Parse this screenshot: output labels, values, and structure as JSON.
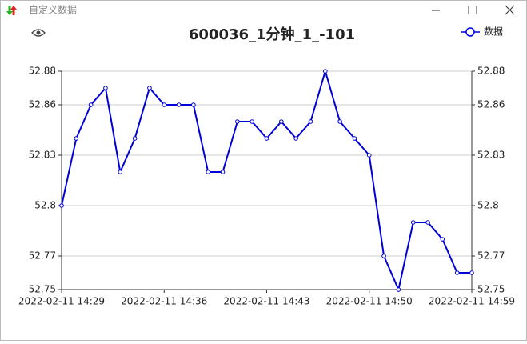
{
  "window": {
    "title": "自定义数据"
  },
  "chart_data": {
    "type": "line",
    "title": "600036_1分钟_1_-101",
    "categories": [
      "2022-02-11 14:29",
      null,
      null,
      null,
      null,
      null,
      null,
      "2022-02-11 14:36",
      null,
      null,
      null,
      null,
      null,
      null,
      "2022-02-11 14:43",
      null,
      null,
      null,
      null,
      null,
      null,
      "2022-02-11 14:50",
      null,
      null,
      null,
      null,
      null,
      null,
      "2022-02-11 14:59"
    ],
    "series": [
      {
        "name": "数据",
        "color": "#0000d8",
        "values": [
          52.8,
          52.84,
          52.86,
          52.87,
          52.82,
          52.84,
          52.87,
          52.86,
          52.86,
          52.86,
          52.82,
          52.82,
          52.85,
          52.85,
          52.84,
          52.85,
          52.84,
          52.85,
          52.88,
          52.85,
          52.84,
          52.83,
          52.77,
          52.75,
          52.79,
          52.79,
          52.78,
          52.76,
          52.76
        ]
      }
    ],
    "ylim": [
      52.75,
      52.88
    ],
    "yticks": [
      52.75,
      52.77,
      52.8,
      52.83,
      52.86,
      52.88
    ],
    "y2lim": [
      52.75,
      52.88
    ],
    "y2ticks": [
      52.75,
      52.77,
      52.8,
      52.83,
      52.86,
      52.88
    ],
    "grid": true,
    "legend": "top-right"
  }
}
